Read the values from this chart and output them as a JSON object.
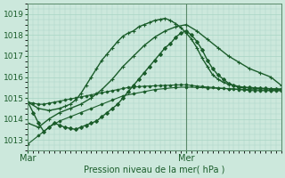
{
  "xlabel": "Pression niveau de la mer( hPa )",
  "bg_color": "#cce8dc",
  "grid_color": "#a8d4c4",
  "line_color": "#1a5c2a",
  "ylim": [
    1012.5,
    1019.5
  ],
  "xlim": [
    0,
    48
  ],
  "xticks": [
    0,
    30
  ],
  "xtick_labels": [
    "Mar",
    "Mer"
  ],
  "yticks": [
    1013,
    1014,
    1015,
    1016,
    1017,
    1018,
    1019
  ],
  "vline_x": 30,
  "series": [
    {
      "x": [
        0,
        1,
        2,
        3,
        4,
        5,
        6,
        7,
        8,
        9,
        10,
        11,
        12,
        13,
        14,
        15,
        16,
        17,
        18,
        19,
        20,
        21,
        22,
        23,
        24,
        25,
        26,
        27,
        28,
        29,
        30,
        31,
        32,
        33,
        34,
        35,
        36,
        37,
        38,
        39,
        40,
        41,
        42,
        43,
        44,
        45,
        46,
        47,
        48
      ],
      "y": [
        1014.8,
        1014.75,
        1014.7,
        1014.7,
        1014.75,
        1014.8,
        1014.85,
        1014.9,
        1014.95,
        1015.0,
        1015.05,
        1015.1,
        1015.15,
        1015.2,
        1015.25,
        1015.3,
        1015.35,
        1015.4,
        1015.45,
        1015.5,
        1015.52,
        1015.54,
        1015.56,
        1015.57,
        1015.58,
        1015.59,
        1015.6,
        1015.61,
        1015.62,
        1015.63,
        1015.63,
        1015.6,
        1015.57,
        1015.54,
        1015.52,
        1015.5,
        1015.48,
        1015.46,
        1015.44,
        1015.42,
        1015.4,
        1015.38,
        1015.36,
        1015.35,
        1015.35,
        1015.35,
        1015.35,
        1015.35,
        1015.35
      ],
      "marker": "D",
      "ms": 1.5,
      "lw": 0.8
    },
    {
      "x": [
        0,
        2,
        4,
        6,
        7,
        8,
        9,
        10,
        11,
        12,
        13,
        14,
        15,
        16,
        17,
        18,
        19,
        20,
        21,
        22,
        23,
        24,
        25,
        26,
        27,
        28,
        29,
        30,
        31,
        32,
        33,
        34,
        35,
        36,
        37,
        38,
        39,
        40,
        41,
        42,
        43,
        44,
        45,
        46,
        47,
        48
      ],
      "y": [
        1014.8,
        1014.5,
        1014.4,
        1014.5,
        1014.6,
        1014.7,
        1014.9,
        1015.2,
        1015.6,
        1016.0,
        1016.4,
        1016.8,
        1017.1,
        1017.4,
        1017.7,
        1017.95,
        1018.1,
        1018.2,
        1018.4,
        1018.5,
        1018.6,
        1018.7,
        1018.75,
        1018.8,
        1018.7,
        1018.55,
        1018.35,
        1018.1,
        1017.8,
        1017.4,
        1016.9,
        1016.5,
        1016.1,
        1015.9,
        1015.75,
        1015.65,
        1015.6,
        1015.55,
        1015.5,
        1015.48,
        1015.46,
        1015.45,
        1015.44,
        1015.43,
        1015.42,
        1015.42
      ],
      "marker": "+",
      "ms": 3.0,
      "lw": 1.0
    },
    {
      "x": [
        0,
        1,
        2,
        3,
        4,
        5,
        6,
        7,
        8,
        9,
        10,
        11,
        12,
        13,
        14,
        15,
        16,
        17,
        18,
        19,
        20,
        21,
        22,
        23,
        24,
        25,
        26,
        27,
        28,
        29,
        30,
        31,
        32,
        33,
        34,
        35,
        36,
        37,
        38,
        39,
        40,
        41,
        42,
        43,
        44,
        45,
        46,
        47,
        48
      ],
      "y": [
        1014.8,
        1014.3,
        1013.8,
        1013.4,
        1013.6,
        1013.8,
        1013.7,
        1013.6,
        1013.55,
        1013.5,
        1013.6,
        1013.7,
        1013.8,
        1013.9,
        1014.1,
        1014.3,
        1014.5,
        1014.7,
        1015.0,
        1015.3,
        1015.6,
        1015.9,
        1016.2,
        1016.5,
        1016.8,
        1017.1,
        1017.4,
        1017.6,
        1017.9,
        1018.1,
        1018.2,
        1018.0,
        1017.7,
        1017.3,
        1016.8,
        1016.4,
        1016.1,
        1015.9,
        1015.7,
        1015.6,
        1015.5,
        1015.5,
        1015.5,
        1015.48,
        1015.46,
        1015.45,
        1015.44,
        1015.43,
        1015.42
      ],
      "marker": "D",
      "ms": 2.0,
      "lw": 1.0
    },
    {
      "x": [
        0,
        2,
        4,
        6,
        8,
        10,
        12,
        14,
        16,
        18,
        20,
        22,
        24,
        26,
        28,
        30,
        32,
        34,
        36,
        38,
        40,
        42,
        44,
        46,
        48
      ],
      "y": [
        1013.8,
        1013.6,
        1014.0,
        1014.3,
        1014.5,
        1014.7,
        1015.0,
        1015.4,
        1015.9,
        1016.5,
        1017.0,
        1017.5,
        1017.9,
        1018.2,
        1018.4,
        1018.5,
        1018.2,
        1017.8,
        1017.4,
        1017.0,
        1016.7,
        1016.4,
        1016.2,
        1016.0,
        1015.6
      ],
      "marker": "+",
      "ms": 3.0,
      "lw": 1.0
    },
    {
      "x": [
        0,
        2,
        4,
        6,
        8,
        10,
        12,
        14,
        16,
        18,
        20,
        22,
        24,
        26,
        28,
        30,
        32,
        34,
        36,
        38,
        40,
        42,
        44,
        46,
        48
      ],
      "y": [
        1012.8,
        1013.2,
        1013.6,
        1013.9,
        1014.1,
        1014.3,
        1014.5,
        1014.7,
        1014.9,
        1015.1,
        1015.2,
        1015.3,
        1015.4,
        1015.45,
        1015.5,
        1015.52,
        1015.5,
        1015.48,
        1015.46,
        1015.44,
        1015.42,
        1015.4,
        1015.38,
        1015.36,
        1015.35
      ],
      "marker": "D",
      "ms": 1.5,
      "lw": 0.8
    }
  ]
}
